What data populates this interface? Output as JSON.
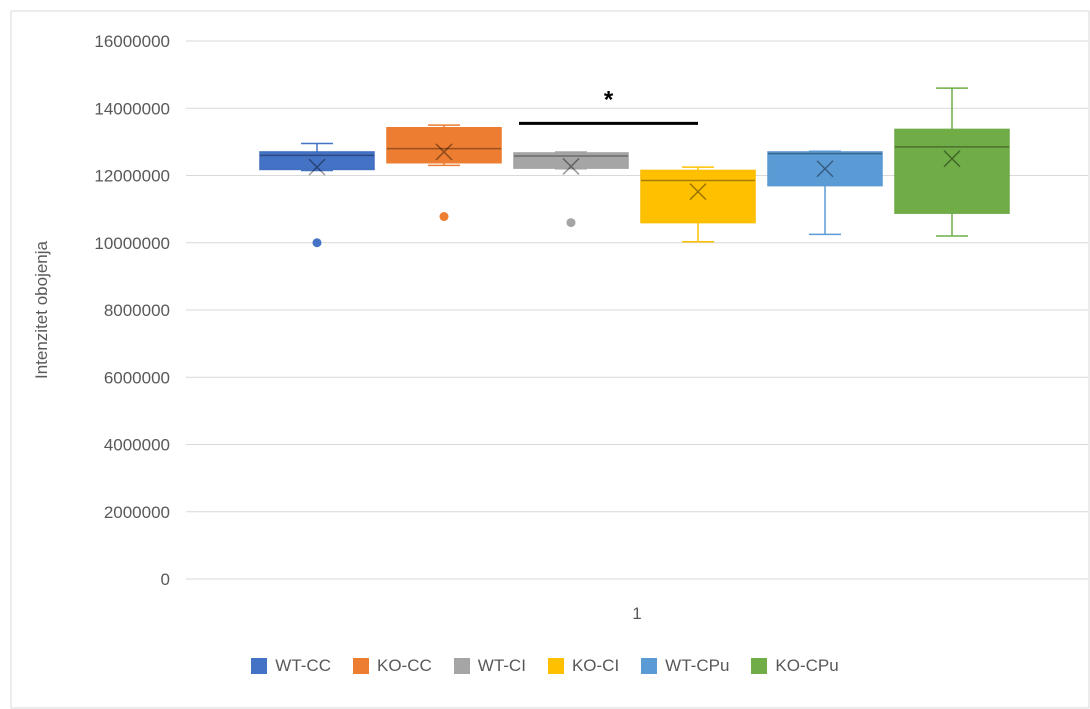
{
  "chart_data": {
    "type": "box",
    "title": "",
    "xlabel": "",
    "ylabel": "Intenzitet obojenja",
    "ylim": [
      0,
      16000000
    ],
    "yticks": [
      "0",
      "2000000",
      "4000000",
      "6000000",
      "8000000",
      "10000000",
      "12000000",
      "14000000",
      "16000000"
    ],
    "categories": [
      "1"
    ],
    "grid": true,
    "legend_position": "bottom",
    "series": [
      {
        "name": "WT-CC",
        "color": "#4472c4",
        "whisker_low": 12150000,
        "q1": 12180000,
        "median": 12600000,
        "q3": 12700000,
        "whisker_high": 12950000,
        "mean": 12250000,
        "outliers": [
          10000000
        ]
      },
      {
        "name": "KO-CC",
        "color": "#ed7d31",
        "whisker_low": 12300000,
        "q1": 12380000,
        "median": 12800000,
        "q3": 13420000,
        "whisker_high": 13500000,
        "mean": 12700000,
        "outliers": [
          10780000
        ]
      },
      {
        "name": "WT-CI",
        "color": "#a5a5a5",
        "whisker_low": 12200000,
        "q1": 12220000,
        "median": 12580000,
        "q3": 12670000,
        "whisker_high": 12700000,
        "mean": 12270000,
        "outliers": [
          10600000
        ]
      },
      {
        "name": "KO-CI",
        "color": "#ffc000",
        "whisker_low": 10030000,
        "q1": 10600000,
        "median": 11850000,
        "q3": 12150000,
        "whisker_high": 12250000,
        "mean": 11520000,
        "outliers": []
      },
      {
        "name": "WT-CPu",
        "color": "#5b9bd5",
        "whisker_low": 10250000,
        "q1": 11700000,
        "median": 12650000,
        "q3": 12700000,
        "whisker_high": 12720000,
        "mean": 12200000,
        "outliers": []
      },
      {
        "name": "KO-CPu",
        "color": "#70ad47",
        "whisker_low": 10200000,
        "q1": 10880000,
        "median": 12850000,
        "q3": 13370000,
        "whisker_high": 14600000,
        "mean": 12500000,
        "outliers": []
      }
    ],
    "annotations": [
      {
        "text": "*",
        "from_series": "WT-CI",
        "to_series": "KO-CI",
        "y": 13550000
      }
    ]
  }
}
